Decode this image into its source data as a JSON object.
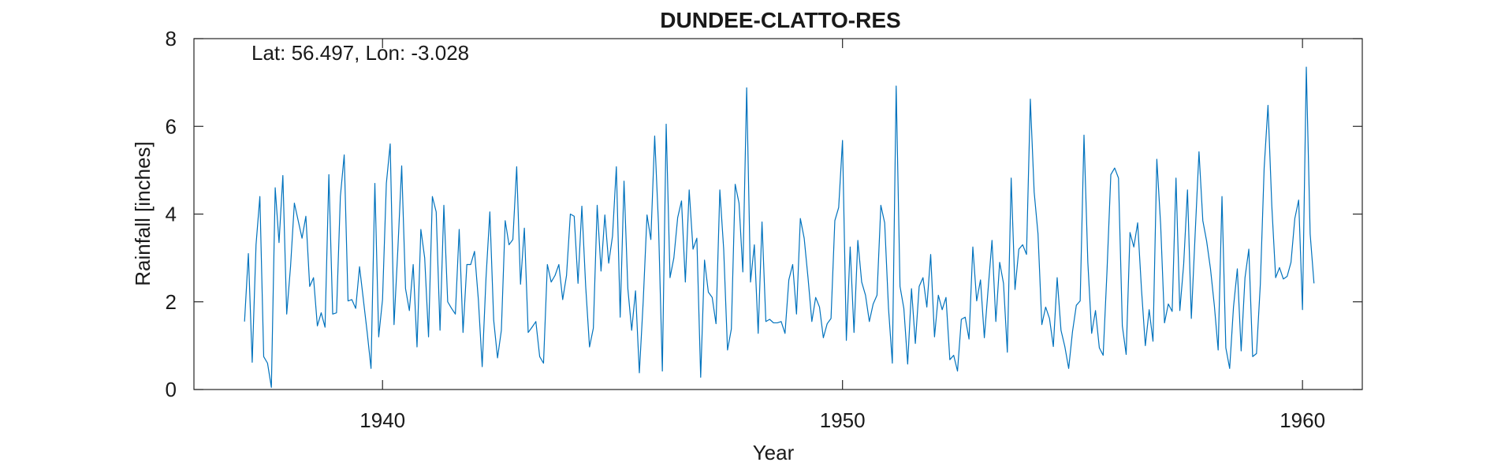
{
  "chart_data": {
    "type": "line",
    "title": "DUNDEE-CLATTO-RES",
    "annotation": "Lat: 56.497, Lon: -3.028",
    "xlabel": "Year",
    "ylabel": "Rainfall [inches]",
    "xlim": [
      1935.9,
      1961.3
    ],
    "ylim": [
      0,
      8
    ],
    "xticks": [
      1940,
      1950,
      1960
    ],
    "yticks": [
      0,
      2,
      4,
      6,
      8
    ],
    "grid": false,
    "line_color": "#0072bd",
    "x_start": 1937.0,
    "x_step_months": 1,
    "series": [
      {
        "values": [
          1.55,
          3.1,
          0.62,
          3.3,
          4.4,
          0.75,
          0.6,
          0.05,
          4.6,
          3.35,
          4.88,
          1.72,
          2.8,
          4.25,
          3.85,
          3.45,
          3.95,
          2.35,
          2.55,
          1.45,
          1.75,
          1.42,
          4.9,
          1.72,
          1.75,
          4.4,
          5.35,
          2.02,
          2.05,
          1.85,
          2.8,
          2.05,
          1.3,
          0.48,
          4.7,
          1.2,
          2.05,
          4.7,
          5.6,
          1.48,
          3.2,
          5.1,
          2.3,
          1.8,
          2.85,
          0.97,
          3.65,
          3.0,
          1.2,
          4.4,
          4.05,
          1.35,
          4.2,
          2.0,
          1.85,
          1.72,
          3.65,
          1.3,
          2.85,
          2.85,
          3.15,
          2.05,
          0.52,
          2.55,
          4.05,
          1.58,
          0.72,
          1.35,
          3.85,
          3.3,
          3.42,
          5.08,
          2.4,
          3.68,
          1.3,
          1.42,
          1.55,
          0.75,
          0.6,
          2.85,
          2.45,
          2.6,
          2.85,
          2.05,
          2.6,
          4.0,
          3.95,
          2.42,
          4.18,
          2.35,
          0.97,
          1.4,
          4.2,
          2.7,
          3.98,
          2.88,
          3.5,
          5.08,
          1.65,
          4.75,
          2.3,
          1.35,
          2.25,
          0.38,
          2.0,
          3.98,
          3.42,
          5.78,
          3.75,
          0.42,
          6.05,
          2.55,
          3.0,
          3.92,
          4.3,
          2.45,
          4.55,
          3.2,
          3.45,
          0.28,
          2.95,
          2.22,
          2.1,
          1.5,
          4.55,
          3.2,
          0.9,
          1.38,
          4.68,
          4.25,
          2.68,
          6.88,
          2.45,
          3.3,
          1.28,
          3.82,
          1.55,
          1.6,
          1.52,
          1.52,
          1.55,
          1.28,
          2.5,
          2.85,
          1.72,
          3.9,
          3.45,
          2.55,
          1.55,
          2.1,
          1.88,
          1.18,
          1.5,
          1.62,
          3.85,
          4.15,
          5.68,
          1.12,
          3.25,
          1.3,
          3.4,
          2.45,
          2.15,
          1.55,
          1.95,
          2.15,
          4.2,
          3.8,
          1.85,
          0.6,
          6.92,
          2.35,
          1.85,
          0.58,
          2.3,
          1.05,
          2.35,
          2.55,
          1.88,
          3.08,
          1.2,
          2.15,
          1.82,
          2.1,
          0.68,
          0.78,
          0.42,
          1.6,
          1.65,
          1.15,
          3.25,
          2.02,
          2.5,
          1.18,
          2.3,
          3.4,
          1.55,
          2.9,
          2.42,
          0.85,
          4.82,
          2.28,
          3.2,
          3.3,
          3.08,
          6.62,
          4.5,
          3.55,
          1.48,
          1.88,
          1.62,
          0.98,
          2.55,
          1.35,
          0.98,
          0.48,
          1.32,
          1.92,
          2.02,
          5.8,
          2.9,
          1.28,
          1.8,
          0.95,
          0.78,
          2.7,
          4.9,
          5.05,
          4.82,
          1.45,
          0.8,
          3.58,
          3.25,
          3.8,
          2.28,
          1.0,
          1.82,
          1.1,
          5.25,
          3.75,
          1.52,
          1.95,
          1.78,
          4.82,
          1.8,
          2.85,
          4.55,
          1.62,
          3.55,
          5.42,
          3.85,
          3.38,
          2.75,
          1.92,
          0.9,
          4.4,
          0.95,
          0.48,
          1.88,
          2.75,
          0.88,
          2.55,
          3.2,
          0.75,
          0.82,
          2.4,
          5.05,
          6.48,
          4.18,
          2.55,
          2.78,
          2.52,
          2.58,
          2.9,
          3.9,
          4.32,
          1.82,
          7.35,
          3.55,
          2.42
        ]
      }
    ]
  }
}
